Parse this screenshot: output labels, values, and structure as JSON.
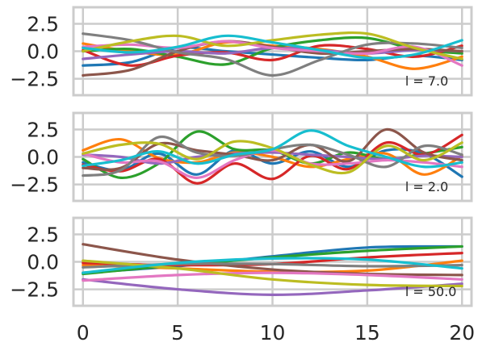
{
  "chart_data": [
    {
      "type": "line",
      "annotation": "l = 7.0",
      "xlim": [
        -0.5,
        20.5
      ],
      "ylim": [
        -4.0,
        4.0
      ],
      "xticks": [
        0,
        5,
        10,
        15,
        20
      ],
      "xtick_labels": [],
      "yticks": [
        2.5,
        0.0,
        -2.5
      ],
      "ytick_labels": [
        "2.5",
        "0.0",
        "−2.5"
      ],
      "grid": true,
      "series": [
        {
          "color": "#1f77b4",
          "x": [
            0,
            2.5,
            5,
            7.5,
            10,
            12.5,
            15,
            17.5,
            20
          ],
          "y": [
            -1.3,
            -1.0,
            0.3,
            0.0,
            -0.3,
            -0.6,
            -0.8,
            -0.4,
            -0.8
          ]
        },
        {
          "color": "#ff7f0e",
          "x": [
            0,
            2.5,
            5,
            7.5,
            10,
            12.5,
            15,
            17.5,
            20
          ],
          "y": [
            0.7,
            0.0,
            -0.3,
            0.8,
            0.5,
            0.2,
            -0.5,
            -1.6,
            -0.5
          ]
        },
        {
          "color": "#2ca02c",
          "x": [
            0,
            2.5,
            5,
            7.5,
            10,
            12.5,
            15,
            17.5,
            20
          ],
          "y": [
            0.0,
            0.2,
            -0.5,
            -1.2,
            0.3,
            1.0,
            1.2,
            0.2,
            -0.2
          ]
        },
        {
          "color": "#d62728",
          "x": [
            0,
            2.5,
            5,
            7.5,
            10,
            12.5,
            15,
            17.5,
            20
          ],
          "y": [
            0.1,
            -1.3,
            -0.4,
            -0.1,
            -0.8,
            0.5,
            0.2,
            -0.5,
            0.5
          ]
        },
        {
          "color": "#9467bd",
          "x": [
            0,
            2.5,
            5,
            7.5,
            10,
            12.5,
            15,
            17.5,
            20
          ],
          "y": [
            -0.7,
            -0.3,
            0.0,
            -0.2,
            0.3,
            0.1,
            -0.2,
            0.1,
            0.0
          ]
        },
        {
          "color": "#8c564b",
          "x": [
            0,
            2.5,
            5,
            7.5,
            10,
            12.5,
            15,
            17.5,
            20
          ],
          "y": [
            -2.2,
            -1.7,
            0.0,
            0.9,
            0.4,
            -0.2,
            0.0,
            0.2,
            0.0
          ]
        },
        {
          "color": "#e377c2",
          "x": [
            0,
            2.5,
            5,
            7.5,
            10,
            12.5,
            15,
            17.5,
            20
          ],
          "y": [
            0.4,
            0.6,
            0.3,
            0.9,
            0.3,
            0.0,
            -0.2,
            0.4,
            -1.3
          ]
        },
        {
          "color": "#7f7f7f",
          "x": [
            0,
            2.5,
            5,
            7.5,
            10,
            12.5,
            15,
            17.5,
            20
          ],
          "y": [
            1.6,
            1.0,
            -0.1,
            -0.7,
            -2.2,
            -0.8,
            0.6,
            0.7,
            0.3
          ]
        },
        {
          "color": "#bcbd22",
          "x": [
            0,
            2.5,
            5,
            7.5,
            10,
            12.5,
            15,
            17.5,
            20
          ],
          "y": [
            0.0,
            0.9,
            1.4,
            0.5,
            1.0,
            1.5,
            1.6,
            0.3,
            -0.7
          ]
        },
        {
          "color": "#17becf",
          "x": [
            0,
            2.5,
            5,
            7.5,
            10,
            12.5,
            15,
            17.5,
            20
          ],
          "y": [
            0.3,
            -0.1,
            0.4,
            1.4,
            0.8,
            0.1,
            -0.6,
            -0.3,
            1.0
          ]
        }
      ]
    },
    {
      "type": "line",
      "annotation": "l = 2.0",
      "xlim": [
        -0.5,
        20.5
      ],
      "ylim": [
        -4.0,
        4.0
      ],
      "xticks": [
        0,
        5,
        10,
        15,
        20
      ],
      "xtick_labels": [],
      "yticks": [
        2.5,
        0.0,
        -2.5
      ],
      "ytick_labels": [
        "2.5",
        "0.0",
        "−2.5"
      ],
      "grid": true,
      "series": [
        {
          "color": "#1f77b4",
          "x": [
            0,
            2,
            4,
            6,
            8,
            10,
            12,
            14,
            16,
            18,
            20
          ],
          "y": [
            -0.5,
            -1.2,
            0.3,
            -1.6,
            0.6,
            -0.6,
            0.5,
            -0.9,
            0.6,
            0.3,
            -1.8
          ]
        },
        {
          "color": "#ff7f0e",
          "x": [
            0,
            2,
            4,
            6,
            8,
            10,
            12,
            14,
            16,
            18,
            20
          ],
          "y": [
            0.6,
            1.6,
            -0.1,
            -0.5,
            0.4,
            0.0,
            -0.9,
            -0.2,
            0.3,
            -1.6,
            0.1
          ]
        },
        {
          "color": "#2ca02c",
          "x": [
            0,
            2,
            4,
            6,
            8,
            10,
            12,
            14,
            16,
            18,
            20
          ],
          "y": [
            -0.2,
            -1.9,
            -0.6,
            2.3,
            0.7,
            0.6,
            -0.6,
            0.4,
            -0.2,
            0.3,
            0.9
          ]
        },
        {
          "color": "#d62728",
          "x": [
            0,
            2,
            4,
            6,
            8,
            10,
            12,
            14,
            16,
            18,
            20
          ],
          "y": [
            -0.7,
            -1.3,
            -0.2,
            -2.4,
            -0.6,
            -2.0,
            0.1,
            -1.1,
            1.3,
            0.2,
            2.0
          ]
        },
        {
          "color": "#9467bd",
          "x": [
            0,
            2,
            4,
            6,
            8,
            10,
            12,
            14,
            16,
            18,
            20
          ],
          "y": [
            0.2,
            0.0,
            -0.6,
            0.0,
            0.3,
            0.4,
            0.2,
            0.0,
            -0.2,
            0.1,
            0.0
          ]
        },
        {
          "color": "#8c564b",
          "x": [
            0,
            2,
            4,
            6,
            8,
            10,
            12,
            14,
            16,
            18,
            20
          ],
          "y": [
            -1.0,
            -1.0,
            1.2,
            0.6,
            0.2,
            -0.3,
            1.1,
            -0.4,
            2.5,
            0.4,
            -0.3
          ]
        },
        {
          "color": "#e377c2",
          "x": [
            0,
            2,
            4,
            6,
            8,
            10,
            12,
            14,
            16,
            18,
            20
          ],
          "y": [
            0.3,
            -0.5,
            -0.4,
            -1.9,
            -0.3,
            0.6,
            -0.6,
            -0.6,
            -0.3,
            -0.5,
            -0.9
          ]
        },
        {
          "color": "#7f7f7f",
          "x": [
            0,
            2,
            4,
            6,
            8,
            10,
            12,
            14,
            16,
            18,
            20
          ],
          "y": [
            -1.7,
            -1.2,
            1.8,
            0.4,
            0.1,
            0.7,
            1.1,
            0.2,
            -0.9,
            1.0,
            0.2
          ]
        },
        {
          "color": "#bcbd22",
          "x": [
            0,
            2,
            4,
            6,
            8,
            10,
            12,
            14,
            16,
            18,
            20
          ],
          "y": [
            0.3,
            1.1,
            1.2,
            -0.2,
            1.4,
            0.8,
            -0.7,
            -1.4,
            1.0,
            -0.3,
            1.3
          ]
        },
        {
          "color": "#17becf",
          "x": [
            0,
            2,
            4,
            6,
            8,
            10,
            12,
            14,
            16,
            18,
            20
          ],
          "y": [
            -0.8,
            -0.3,
            0.5,
            -0.6,
            0.2,
            0.7,
            2.4,
            1.0,
            0.0,
            -0.9,
            -0.5
          ]
        }
      ]
    },
    {
      "type": "line",
      "annotation": "l = 50.0",
      "xlim": [
        -0.5,
        20.5
      ],
      "ylim": [
        -4.0,
        4.0
      ],
      "xticks": [
        0,
        5,
        10,
        15,
        20
      ],
      "xtick_labels": [
        "0",
        "5",
        "10",
        "15",
        "20"
      ],
      "yticks": [
        2.5,
        0.0,
        -2.5
      ],
      "ytick_labels": [
        "2.5",
        "0.0",
        "−2.5"
      ],
      "grid": true,
      "series": [
        {
          "color": "#1f77b4",
          "x": [
            0,
            5,
            10,
            15,
            20
          ],
          "y": [
            -1.0,
            -0.4,
            0.5,
            1.3,
            1.4
          ]
        },
        {
          "color": "#ff7f0e",
          "x": [
            0,
            5,
            10,
            15,
            20
          ],
          "y": [
            -0.3,
            -0.6,
            -0.9,
            -0.8,
            0.1
          ]
        },
        {
          "color": "#2ca02c",
          "x": [
            0,
            5,
            10,
            15,
            20
          ],
          "y": [
            -1.1,
            -0.3,
            0.4,
            1.0,
            1.4
          ]
        },
        {
          "color": "#d62728",
          "x": [
            0,
            5,
            10,
            15,
            20
          ],
          "y": [
            -0.1,
            -0.3,
            -0.2,
            0.4,
            0.8
          ]
        },
        {
          "color": "#9467bd",
          "x": [
            0,
            5,
            10,
            15,
            20
          ],
          "y": [
            -1.6,
            -2.5,
            -3.0,
            -2.6,
            -2.0
          ]
        },
        {
          "color": "#8c564b",
          "x": [
            0,
            5,
            10,
            15,
            20
          ],
          "y": [
            1.6,
            0.2,
            -0.7,
            -1.1,
            -1.2
          ]
        },
        {
          "color": "#e377c2",
          "x": [
            0,
            5,
            10,
            15,
            20
          ],
          "y": [
            -1.7,
            -1.2,
            -1.0,
            -1.2,
            -1.6
          ]
        },
        {
          "color": "#7f7f7f",
          "x": [
            0,
            5,
            10,
            15,
            20
          ],
          "y": [
            -0.5,
            -0.2,
            -0.2,
            -0.4,
            -0.3
          ]
        },
        {
          "color": "#bcbd22",
          "x": [
            0,
            5,
            10,
            15,
            20
          ],
          "y": [
            0.1,
            -0.6,
            -1.6,
            -2.1,
            -2.2
          ]
        },
        {
          "color": "#17becf",
          "x": [
            0,
            5,
            10,
            15,
            20
          ],
          "y": [
            -1.0,
            -0.1,
            0.3,
            0.2,
            -0.6
          ]
        }
      ]
    }
  ]
}
